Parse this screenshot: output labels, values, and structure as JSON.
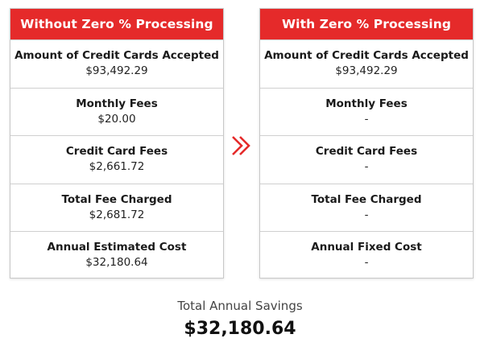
{
  "left_card": {
    "title": "Without Zero % Processing",
    "rows": [
      {
        "label": "Amount of Credit Cards Accepted",
        "value": "$93,492.29"
      },
      {
        "label": "Monthly Fees",
        "value": "$20.00"
      },
      {
        "label": "Credit Card Fees",
        "value": "$2,661.72"
      },
      {
        "label": "Total Fee Charged",
        "value": "$2,681.72"
      },
      {
        "label": "Annual Estimated Cost",
        "value": "$32,180.64"
      }
    ]
  },
  "right_card": {
    "title": "With Zero % Processing",
    "rows": [
      {
        "label": "Amount of Credit Cards Accepted",
        "value": "$93,492.29"
      },
      {
        "label": "Monthly Fees",
        "value": "-"
      },
      {
        "label": "Credit Card Fees",
        "value": "-"
      },
      {
        "label": "Total Fee Charged",
        "value": "-"
      },
      {
        "label": "Annual Fixed Cost",
        "value": "-"
      }
    ]
  },
  "arrow_icon": "double-chevron-right",
  "summary": {
    "label": "Total Annual Savings",
    "value": "$32,180.64"
  },
  "colors": {
    "accent": "#e52a2a",
    "border": "#c8c8c8"
  }
}
